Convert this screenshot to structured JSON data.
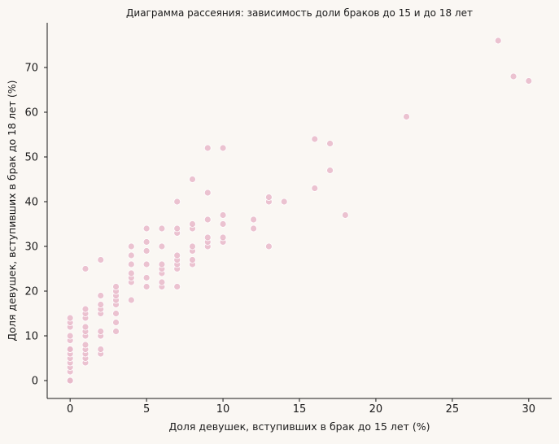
{
  "chart_data": {
    "type": "scatter",
    "title": "Диаграмма рассеяния: зависимость доли браков до 15 и до 18 лет",
    "xlabel": "Доля девушек, вступивших в брак до 15 лет (%)",
    "ylabel": "Доля девушек, вступивших в брак до 18 лет (%)",
    "xlim": [
      -1.5,
      31.5
    ],
    "ylim": [
      -4,
      80
    ],
    "xticks": [
      0,
      5,
      10,
      15,
      20,
      25,
      30
    ],
    "yticks": [
      0,
      10,
      20,
      30,
      40,
      50,
      60,
      70
    ],
    "grid": false,
    "point_color": "#e8b9c9",
    "background": "#faf7f3",
    "points": [
      {
        "x": 0,
        "y": 0
      },
      {
        "x": 0,
        "y": 0
      },
      {
        "x": 0,
        "y": 2
      },
      {
        "x": 0,
        "y": 3
      },
      {
        "x": 0,
        "y": 4
      },
      {
        "x": 0,
        "y": 5
      },
      {
        "x": 0,
        "y": 6
      },
      {
        "x": 0,
        "y": 7
      },
      {
        "x": 0,
        "y": 7
      },
      {
        "x": 0,
        "y": 9
      },
      {
        "x": 0,
        "y": 10
      },
      {
        "x": 0,
        "y": 12
      },
      {
        "x": 0,
        "y": 13
      },
      {
        "x": 0,
        "y": 14
      },
      {
        "x": 1,
        "y": 4
      },
      {
        "x": 1,
        "y": 5
      },
      {
        "x": 1,
        "y": 6
      },
      {
        "x": 1,
        "y": 7
      },
      {
        "x": 1,
        "y": 8
      },
      {
        "x": 1,
        "y": 10
      },
      {
        "x": 1,
        "y": 11
      },
      {
        "x": 1,
        "y": 12
      },
      {
        "x": 1,
        "y": 14
      },
      {
        "x": 1,
        "y": 15
      },
      {
        "x": 1,
        "y": 16
      },
      {
        "x": 1,
        "y": 25
      },
      {
        "x": 2,
        "y": 6
      },
      {
        "x": 2,
        "y": 7
      },
      {
        "x": 2,
        "y": 10
      },
      {
        "x": 2,
        "y": 11
      },
      {
        "x": 2,
        "y": 15
      },
      {
        "x": 2,
        "y": 16
      },
      {
        "x": 2,
        "y": 17
      },
      {
        "x": 2,
        "y": 19
      },
      {
        "x": 2,
        "y": 27
      },
      {
        "x": 3,
        "y": 11
      },
      {
        "x": 3,
        "y": 13
      },
      {
        "x": 3,
        "y": 15
      },
      {
        "x": 3,
        "y": 17
      },
      {
        "x": 3,
        "y": 18
      },
      {
        "x": 3,
        "y": 19
      },
      {
        "x": 3,
        "y": 20
      },
      {
        "x": 3,
        "y": 21
      },
      {
        "x": 4,
        "y": 18
      },
      {
        "x": 4,
        "y": 22
      },
      {
        "x": 4,
        "y": 23
      },
      {
        "x": 4,
        "y": 24
      },
      {
        "x": 4,
        "y": 26
      },
      {
        "x": 4,
        "y": 28
      },
      {
        "x": 4,
        "y": 30
      },
      {
        "x": 5,
        "y": 21
      },
      {
        "x": 5,
        "y": 23
      },
      {
        "x": 5,
        "y": 26
      },
      {
        "x": 5,
        "y": 29
      },
      {
        "x": 5,
        "y": 31
      },
      {
        "x": 5,
        "y": 34
      },
      {
        "x": 6,
        "y": 21
      },
      {
        "x": 6,
        "y": 22
      },
      {
        "x": 6,
        "y": 24
      },
      {
        "x": 6,
        "y": 25
      },
      {
        "x": 6,
        "y": 26
      },
      {
        "x": 6,
        "y": 30
      },
      {
        "x": 6,
        "y": 34
      },
      {
        "x": 7,
        "y": 21
      },
      {
        "x": 7,
        "y": 25
      },
      {
        "x": 7,
        "y": 26
      },
      {
        "x": 7,
        "y": 27
      },
      {
        "x": 7,
        "y": 28
      },
      {
        "x": 7,
        "y": 33
      },
      {
        "x": 7,
        "y": 34
      },
      {
        "x": 7,
        "y": 40
      },
      {
        "x": 8,
        "y": 26
      },
      {
        "x": 8,
        "y": 27
      },
      {
        "x": 8,
        "y": 29
      },
      {
        "x": 8,
        "y": 30
      },
      {
        "x": 8,
        "y": 34
      },
      {
        "x": 8,
        "y": 35
      },
      {
        "x": 8,
        "y": 45
      },
      {
        "x": 9,
        "y": 30
      },
      {
        "x": 9,
        "y": 31
      },
      {
        "x": 9,
        "y": 32
      },
      {
        "x": 9,
        "y": 36
      },
      {
        "x": 9,
        "y": 42
      },
      {
        "x": 9,
        "y": 52
      },
      {
        "x": 10,
        "y": 31
      },
      {
        "x": 10,
        "y": 32
      },
      {
        "x": 10,
        "y": 35
      },
      {
        "x": 10,
        "y": 37
      },
      {
        "x": 10,
        "y": 52
      },
      {
        "x": 12,
        "y": 34
      },
      {
        "x": 12,
        "y": 36
      },
      {
        "x": 13,
        "y": 30
      },
      {
        "x": 13,
        "y": 40
      },
      {
        "x": 13,
        "y": 41
      },
      {
        "x": 14,
        "y": 40
      },
      {
        "x": 16,
        "y": 43
      },
      {
        "x": 16,
        "y": 54
      },
      {
        "x": 17,
        "y": 47
      },
      {
        "x": 17,
        "y": 53
      },
      {
        "x": 18,
        "y": 37
      },
      {
        "x": 22,
        "y": 59
      },
      {
        "x": 28,
        "y": 76
      },
      {
        "x": 29,
        "y": 68
      },
      {
        "x": 30,
        "y": 67
      }
    ]
  }
}
